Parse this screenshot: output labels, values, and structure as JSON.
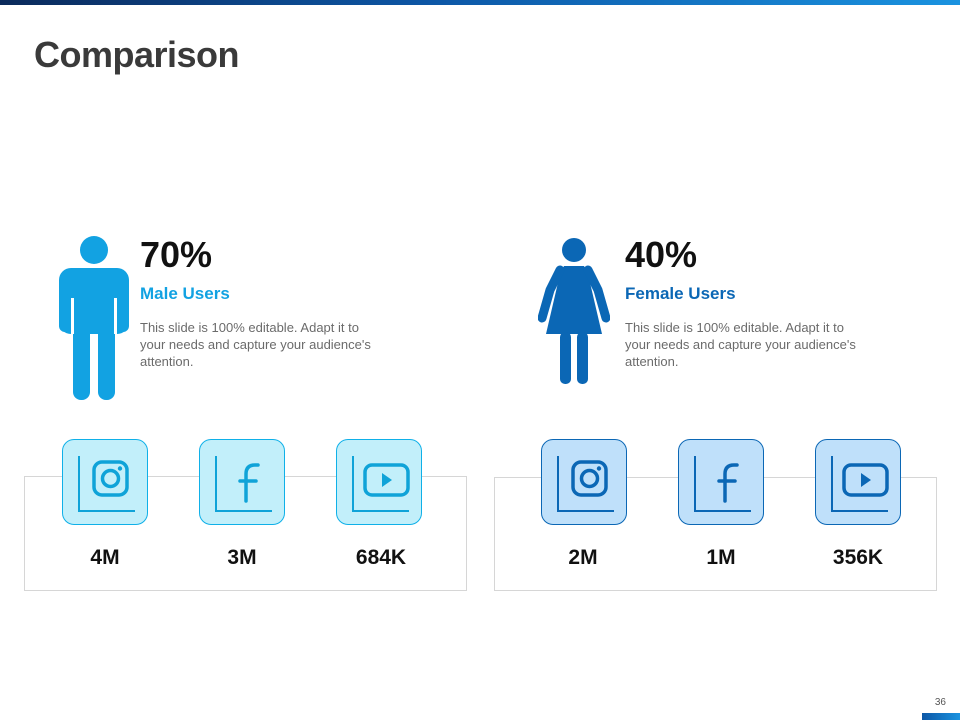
{
  "title": "Comparison",
  "male": {
    "percent": "70%",
    "label": "Male Users",
    "description": "This slide is 100% editable. Adapt it to your needs and capture your audience's attention.",
    "color": "#12a2e2",
    "stats": [
      "4M",
      "3M",
      "684K"
    ]
  },
  "female": {
    "percent": "40%",
    "label": "Female Users",
    "description": "This slide is 100% editable. Adapt it to your needs and capture your audience's attention.",
    "color": "#0b67b5",
    "stats": [
      "2M",
      "1M",
      "356K"
    ]
  },
  "icons": [
    "instagram-icon",
    "facebook-icon",
    "youtube-icon"
  ],
  "page_number": "36"
}
